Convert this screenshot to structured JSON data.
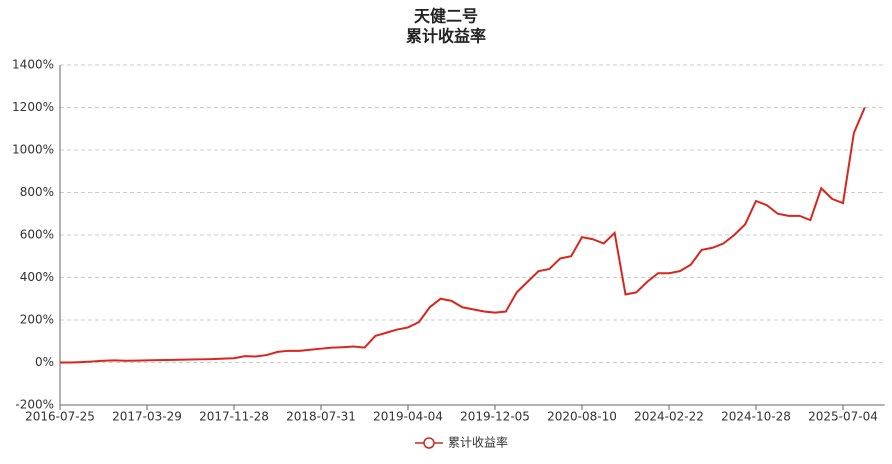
{
  "chart_data": {
    "type": "line",
    "title": "天健二号",
    "subtitle": "累计收益率",
    "categories": [
      "2016-07-25",
      null,
      null,
      null,
      null,
      null,
      null,
      null,
      "2017-03-29",
      null,
      null,
      null,
      null,
      null,
      null,
      null,
      "2017-11-28",
      null,
      null,
      null,
      null,
      null,
      null,
      null,
      "2018-07-31",
      null,
      null,
      null,
      null,
      null,
      null,
      null,
      "2019-04-04",
      null,
      null,
      null,
      null,
      null,
      null,
      null,
      "2019-12-05",
      null,
      null,
      null,
      null,
      null,
      null,
      null,
      "2020-08-10",
      null,
      null,
      null,
      null,
      null,
      null,
      null,
      "2024-02-22",
      null,
      null,
      null,
      null,
      null,
      null,
      null,
      "2024-10-28",
      null,
      null,
      null,
      null,
      null,
      null,
      null,
      "2025-07-04",
      null,
      null
    ],
    "series": [
      {
        "name": "累计收益率",
        "color": "#d9261c",
        "values": [
          0,
          0,
          2,
          5,
          8,
          10,
          8,
          9,
          10,
          11,
          12,
          13,
          14,
          15,
          16,
          18,
          20,
          30,
          28,
          35,
          50,
          55,
          55,
          60,
          65,
          70,
          72,
          75,
          70,
          125,
          140,
          155,
          165,
          190,
          260,
          300,
          290,
          260,
          250,
          240,
          235,
          240,
          330,
          380,
          430,
          440,
          490,
          500,
          590,
          580,
          560,
          610,
          320,
          330,
          380,
          420,
          420,
          430,
          460,
          530,
          540,
          560,
          600,
          650,
          760,
          740,
          700,
          690,
          690,
          670,
          820,
          770,
          750,
          1080,
          1200
        ]
      }
    ],
    "ylim": [
      -200,
      1400
    ],
    "yticks": [
      {
        "value": -200,
        "label": "-200%"
      },
      {
        "value": 0,
        "label": "0%"
      },
      {
        "value": 200,
        "label": "200%"
      },
      {
        "value": 400,
        "label": "400%"
      },
      {
        "value": 600,
        "label": "600%"
      },
      {
        "value": 800,
        "label": "800%"
      },
      {
        "value": 1000,
        "label": "1000%"
      },
      {
        "value": 1200,
        "label": "1200%"
      },
      {
        "value": 1400,
        "label": "1400%"
      }
    ],
    "grid": true
  }
}
